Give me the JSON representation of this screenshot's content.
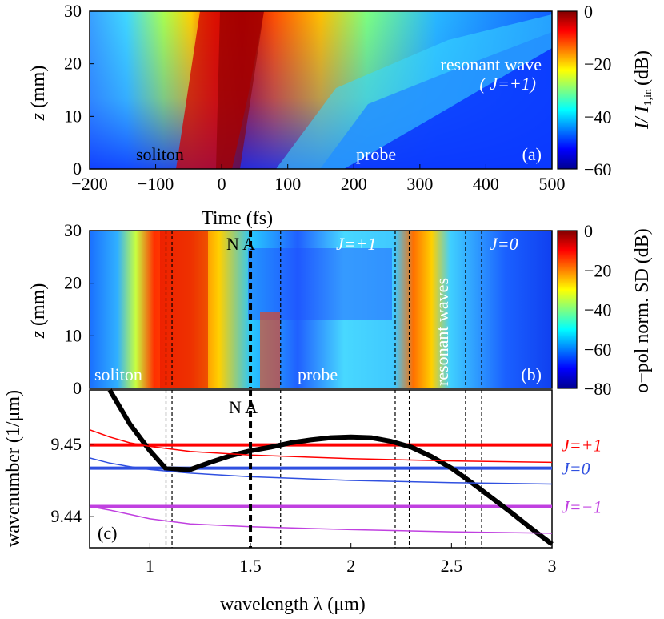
{
  "chart_data": [
    {
      "type": "heatmap",
      "panel": "(a)",
      "xlabel": "Time (fs)",
      "ylabel": "z (mm)",
      "xlim": [
        -200,
        500
      ],
      "ylim": [
        0,
        30
      ],
      "xticks": [
        -200,
        -100,
        0,
        100,
        200,
        300,
        400,
        500
      ],
      "xtick_labels": [
        "−200",
        "−100",
        "0",
        "100",
        "200",
        "300",
        "400",
        "500"
      ],
      "yticks": [
        0,
        10,
        20,
        30
      ],
      "colorbar": {
        "label": "I/ I",
        "label_sub": "1,in",
        "unit": "(dB)",
        "range": [
          -60,
          0
        ],
        "ticks": [
          0,
          -20,
          -40,
          -60
        ],
        "tick_labels": [
          "0",
          "−20",
          "−40",
          "−60"
        ]
      },
      "annotations": {
        "soliton": "soliton",
        "probe": "probe",
        "resonant_wave": "resonant wave",
        "resonant_wave_j": "( J=+1)",
        "panel": "(a)"
      }
    },
    {
      "type": "heatmap",
      "panel": "(b)",
      "ylabel": "z (mm)",
      "xlim": [
        0.7,
        3.0
      ],
      "ylim": [
        0,
        30
      ],
      "yticks": [
        0,
        10,
        20,
        30
      ],
      "colorbar": {
        "label": "o−pol norm. SD (dB)",
        "range": [
          -80,
          0
        ],
        "ticks": [
          0,
          -20,
          -40,
          -60,
          -80
        ],
        "tick_labels": [
          "0",
          "−20",
          "−40",
          "−60",
          "−80"
        ]
      },
      "annotations": {
        "soliton": "soliton",
        "probe": "probe",
        "na": "N A",
        "j1": "J=+1",
        "j0": "J=0",
        "resonant": "resonant waves",
        "panel": "(b)"
      },
      "dashed_lines_um": [
        1.08,
        1.11,
        1.5,
        1.65,
        2.22,
        2.29,
        2.57,
        2.65
      ]
    },
    {
      "type": "line",
      "panel": "(c)",
      "xlabel": "wavelength λ (μm)",
      "ylabel": "wavenumber (1/μm)",
      "xlim": [
        0.7,
        3.0
      ],
      "ylim": [
        9.4357,
        9.4575
      ],
      "xticks": [
        1,
        1.5,
        2,
        2.5,
        3
      ],
      "xtick_labels": [
        "1",
        "1.5",
        "2",
        "2.5",
        "3"
      ],
      "yticks": [
        9.44,
        9.45
      ],
      "ytick_labels": [
        "9.44",
        "9.45"
      ],
      "series": [
        {
          "name": "",
          "color": "#000000",
          "x": [
            0.8,
            0.9,
            1.0,
            1.08,
            1.2,
            1.3,
            1.4,
            1.5,
            1.6,
            1.7,
            1.8,
            1.9,
            2.0,
            2.1,
            2.2,
            2.3,
            2.4,
            2.5,
            2.6,
            2.7,
            2.8,
            2.9,
            3.0
          ],
          "y": [
            9.4575,
            9.4528,
            9.4491,
            9.4466,
            9.4465,
            9.4475,
            9.4484,
            9.4491,
            9.4496,
            9.4502,
            9.4506,
            9.4509,
            9.451,
            9.4509,
            9.4504,
            9.4496,
            9.4483,
            9.4467,
            9.4447,
            9.4426,
            9.4405,
            9.4383,
            9.4362
          ]
        },
        {
          "name": "J=+1",
          "color": "#ff0000",
          "x": [
            0.7,
            0.8,
            0.9,
            1.0,
            1.2,
            1.5,
            2.0,
            2.5,
            3.0
          ],
          "y": [
            9.452,
            9.451,
            9.4502,
            9.4497,
            9.449,
            9.4485,
            9.448,
            9.4477,
            9.4475
          ]
        },
        {
          "name": "J=0",
          "color": "#3050e0",
          "x": [
            0.7,
            0.8,
            0.9,
            1.0,
            1.2,
            1.5,
            2.0,
            2.5,
            3.0
          ],
          "y": [
            9.4481,
            9.4474,
            9.4469,
            9.4465,
            9.446,
            9.4455,
            9.445,
            9.4447,
            9.4445
          ]
        },
        {
          "name": "J=−1",
          "color": "#c040e0",
          "x": [
            0.7,
            0.8,
            0.9,
            1.0,
            1.2,
            1.5,
            2.0,
            2.5,
            3.0
          ],
          "y": [
            9.4414,
            9.4409,
            9.4403,
            9.4397,
            9.439,
            9.4386,
            9.4382,
            9.4379,
            9.4377
          ]
        }
      ],
      "hlines": [
        {
          "label": "J=+1",
          "y": 9.4499,
          "color": "#ff0000"
        },
        {
          "label": "J=0",
          "y": 9.4467,
          "color": "#3050e0"
        },
        {
          "label": "J=−1",
          "y": 9.4414,
          "color": "#c040e0"
        }
      ],
      "vline": {
        "x": 1.5,
        "label": "N A"
      },
      "dashed_lines_um": [
        1.08,
        1.11,
        1.65,
        2.22,
        2.29,
        2.57,
        2.65
      ],
      "annotations": {
        "panel": "(c)"
      }
    }
  ]
}
